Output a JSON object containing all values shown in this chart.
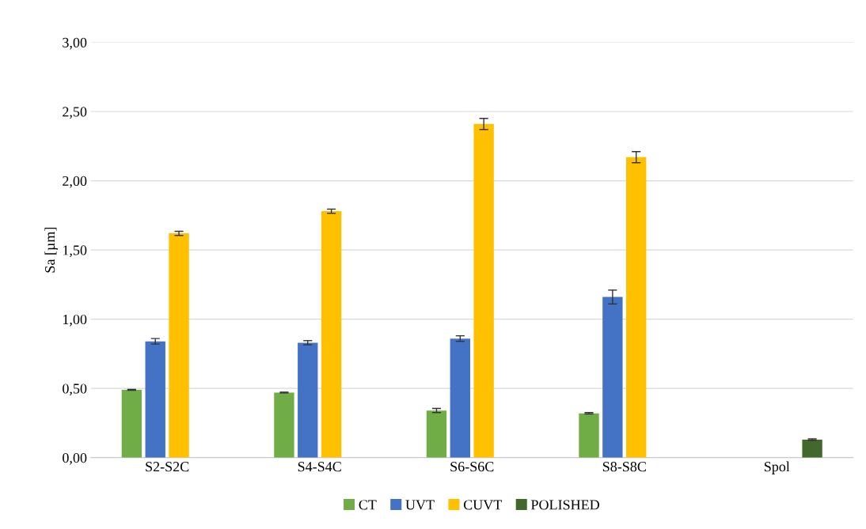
{
  "chart_data": {
    "type": "bar",
    "ylabel": "Sa [µm]",
    "categories": [
      "S2-S2C",
      "S4-S4C",
      "S6-S6C",
      "S8-S8C",
      "Spol"
    ],
    "series": [
      {
        "name": "CT",
        "color": "#70ad47",
        "values": [
          0.49,
          0.47,
          0.34,
          0.32,
          null
        ],
        "errors": [
          0.003,
          0.003,
          0.015,
          0.005,
          null
        ]
      },
      {
        "name": "UVT",
        "color": "#4472c4",
        "values": [
          0.84,
          0.83,
          0.86,
          1.16,
          null
        ],
        "errors": [
          0.02,
          0.015,
          0.02,
          0.05,
          null
        ]
      },
      {
        "name": "CUVT",
        "color": "#ffc000",
        "values": [
          1.62,
          1.78,
          2.41,
          2.17,
          null
        ],
        "errors": [
          0.015,
          0.015,
          0.04,
          0.04,
          null
        ]
      },
      {
        "name": "POLISHED",
        "color": "#43682b",
        "values": [
          null,
          null,
          null,
          null,
          0.13
        ],
        "errors": [
          null,
          null,
          null,
          null,
          0.005
        ]
      }
    ],
    "ylim": [
      0,
      3
    ],
    "yticks": [
      {
        "value": 0,
        "label": "0,00"
      },
      {
        "value": 0.5,
        "label": "0,50"
      },
      {
        "value": 1,
        "label": "1,00"
      },
      {
        "value": 1.5,
        "label": "1,50"
      },
      {
        "value": 2,
        "label": "2,00"
      },
      {
        "value": 2.5,
        "label": "2,50"
      },
      {
        "value": 3,
        "label": "3,00"
      }
    ],
    "grid": "y",
    "legend": "bottom"
  }
}
